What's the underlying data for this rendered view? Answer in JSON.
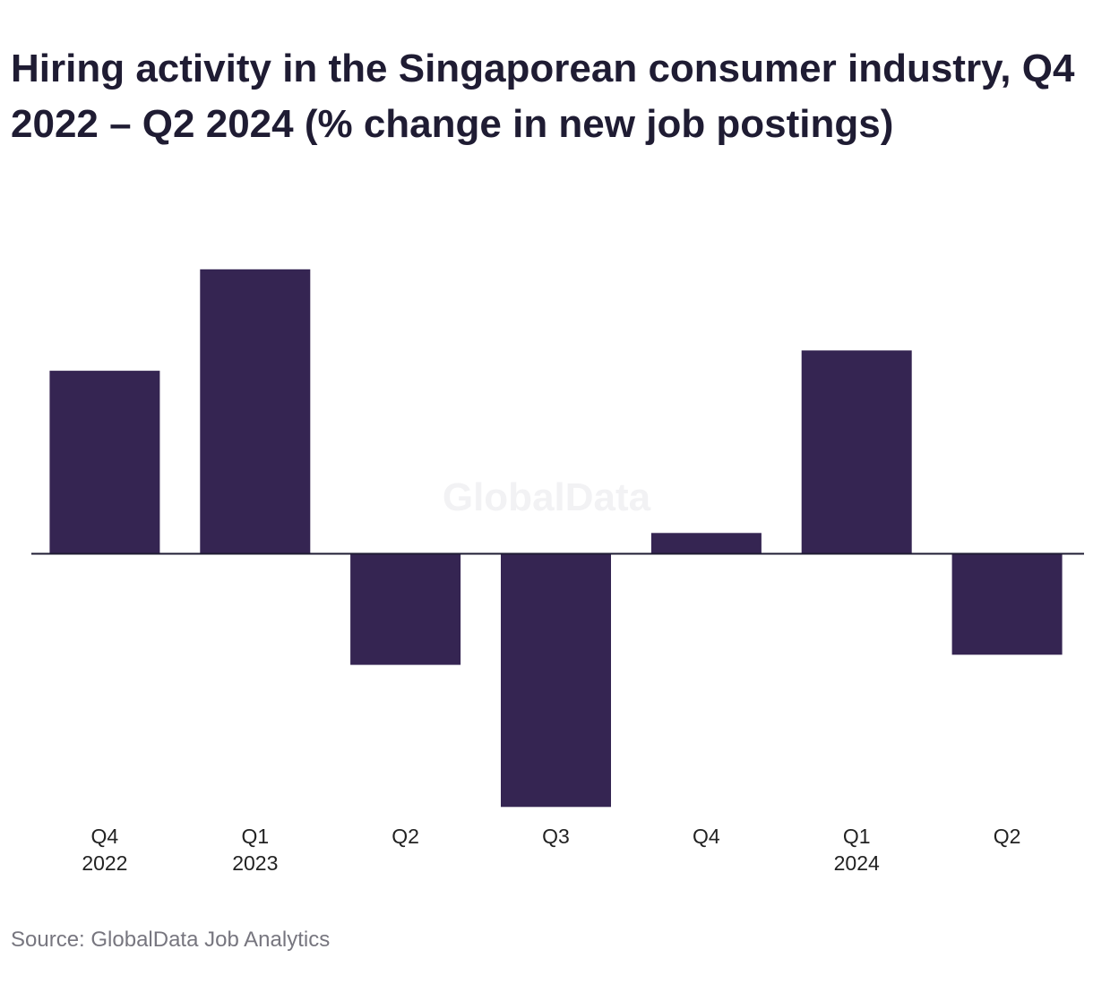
{
  "source": "Source: GlobalData Job Analytics",
  "watermark": "GlobalData",
  "chart_data": {
    "type": "bar",
    "title": "Hiring activity in the Singaporean consumer industry, Q4 2022 – Q2 2024 (% change in new job postings)",
    "xlabel": "",
    "ylabel": "",
    "categories": [
      [
        "Q4",
        "2022"
      ],
      [
        "Q1",
        "2023"
      ],
      [
        "Q2",
        ""
      ],
      [
        "Q3",
        ""
      ],
      [
        "Q4",
        ""
      ],
      [
        "Q1",
        "2024"
      ],
      [
        "Q2",
        ""
      ]
    ],
    "values": [
      18,
      28,
      -11,
      -25,
      2,
      20,
      -10
    ],
    "ylim": [
      -25,
      28
    ],
    "grid": false,
    "legend": "none",
    "bar_color": "#352552",
    "axis_color": "#1f1c33"
  }
}
